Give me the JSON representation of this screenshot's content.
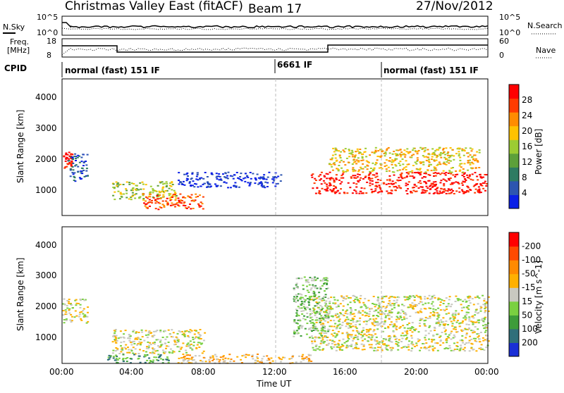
{
  "header": {
    "title": "Christmas Valley East (fitACF)",
    "beam": "Beam 17",
    "date": "27/Nov/2012"
  },
  "noise_panel": {
    "left_label": "N.Sky",
    "right_label": "N.Search",
    "top_tick": "10^5",
    "bottom_tick": "10^0",
    "right_top_tick": "10^5",
    "right_bottom_tick": "10^0"
  },
  "freq_panel": {
    "left_label_1": "Freq.",
    "left_label_2": "[MHz]",
    "right_label": "Nave",
    "top_tick": "18",
    "bottom_tick": "8",
    "right_top_tick": "60",
    "right_bottom_tick": "0"
  },
  "cpid_panel": {
    "label": "CPID",
    "segments": [
      {
        "label": "normal (fast) 151 IF",
        "start_hour": 0
      },
      {
        "label": "6661 IF",
        "start_hour": 12
      },
      {
        "label": "normal (fast) 151 IF",
        "start_hour": 18
      }
    ]
  },
  "chart_data": [
    {
      "type": "heatmap",
      "name": "Power",
      "xlabel": "",
      "ylabel": "Slant Range [km]",
      "xlim": [
        0,
        24
      ],
      "ylim": [
        180,
        4600
      ],
      "yticks": [
        "1000",
        "2000",
        "3000",
        "4000"
      ],
      "colorbar": {
        "label": "Power [dB]",
        "ticks": [
          "4",
          "8",
          "12",
          "16",
          "20",
          "24",
          "28"
        ],
        "colors": [
          "#0a1fe6",
          "#2d55b0",
          "#2e7b62",
          "#5da03a",
          "#9ccc33",
          "#ffc200",
          "#ff8c00",
          "#ff3c00",
          "#ff0000"
        ]
      },
      "regions": [
        {
          "t": [
            0.05,
            0.55
          ],
          "r": [
            1700,
            2300
          ],
          "level": 8
        },
        {
          "t": [
            0.3,
            1.4
          ],
          "r": [
            1300,
            2200
          ],
          "level": 1
        },
        {
          "t": [
            2.8,
            6.4
          ],
          "r": [
            700,
            1300
          ],
          "level": 4
        },
        {
          "t": [
            4.5,
            8.0
          ],
          "r": [
            400,
            900
          ],
          "level": 7
        },
        {
          "t": [
            6.5,
            12.3
          ],
          "r": [
            1100,
            1600
          ],
          "level": 0
        },
        {
          "t": [
            14.0,
            23.9
          ],
          "r": [
            900,
            1600
          ],
          "level": 8
        },
        {
          "t": [
            15.0,
            23.5
          ],
          "r": [
            1600,
            2400
          ],
          "level": 5
        }
      ]
    },
    {
      "type": "heatmap",
      "name": "Velocity",
      "xlabel": "Time UT",
      "ylabel": "Slant Range [km]",
      "xlim": [
        0,
        24
      ],
      "ylim": [
        180,
        4600
      ],
      "xticks": [
        "00:00",
        "04:00",
        "08:00",
        "12:00",
        "16:00",
        "20:00",
        "00:00"
      ],
      "yticks": [
        "1000",
        "2000",
        "3000",
        "4000"
      ],
      "colorbar": {
        "label": "Velocity [m s^-1]",
        "ticks": [
          "200",
          "100",
          "50",
          "15",
          "-15",
          "-50",
          "-100",
          "-200"
        ],
        "colors": [
          "#1a2fd6",
          "#2f6f7a",
          "#3d9c3a",
          "#7ad041",
          "#c8c8c0",
          "#ffb000",
          "#ff8a00",
          "#ff4a00",
          "#ff0000"
        ]
      },
      "regions": [
        {
          "t": [
            0.0,
            1.4
          ],
          "r": [
            1500,
            2300
          ],
          "level": 4
        },
        {
          "t": [
            2.8,
            8.0
          ],
          "r": [
            500,
            1300
          ],
          "level": 4
        },
        {
          "t": [
            2.5,
            6.0
          ],
          "r": [
            200,
            500
          ],
          "level": 2
        },
        {
          "t": [
            6.5,
            14.0
          ],
          "r": [
            200,
            500
          ],
          "level": 5
        },
        {
          "t": [
            14.0,
            24.0
          ],
          "r": [
            600,
            2400
          ],
          "level": 4
        },
        {
          "t": [
            13.0,
            15.0
          ],
          "r": [
            1000,
            3000
          ],
          "level": 3
        }
      ]
    }
  ],
  "colors": {
    "grid": "#bbbbbb",
    "axis": "#000000"
  }
}
